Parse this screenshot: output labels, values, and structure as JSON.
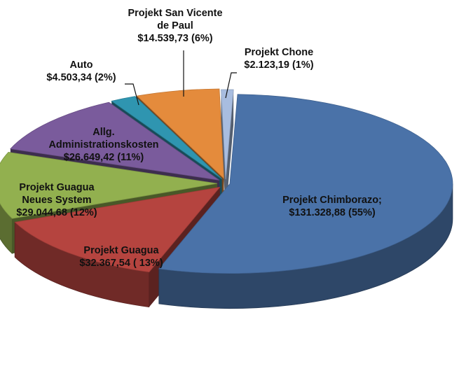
{
  "chart_data": {
    "type": "pie",
    "style": "3d-exploded",
    "slices": [
      {
        "name": "Projekt Chimborazo;",
        "value": 131328.88,
        "value_label": "$131.328,88 (55%)",
        "color": "#4a72a8",
        "label_lines": [
          "Projekt Chimborazo;",
          "$131.328,88 (55%)"
        ]
      },
      {
        "name": "Projekt Guagua",
        "value": 32367.54,
        "value_label": "$32.367,54 ( 13%)",
        "color": "#b5443f",
        "label_lines": [
          "Projekt Guagua",
          "$32.367,54 ( 13%)"
        ]
      },
      {
        "name": "Projekt Guagua Neues System",
        "value": 29044.68,
        "value_label": "$29.044,68 (12%)",
        "color": "#92b04f",
        "label_lines": [
          "Projekt Guagua",
          "Neues System",
          "$29.044,68 (12%)"
        ]
      },
      {
        "name": "Allg. Administrationskosten",
        "value": 26649.42,
        "value_label": "$26.649,42 (11%)",
        "color": "#7a5b9c",
        "label_lines": [
          "Allg.",
          "Administrationskosten",
          "$26.649,42 (11%)"
        ]
      },
      {
        "name": "Auto",
        "value": 4503.34,
        "value_label": "$4.503,34 (2%)",
        "color": "#2f95b0",
        "label_lines": [
          "Auto",
          "$4.503,34 (2%)"
        ]
      },
      {
        "name": "Projekt San Vicente de Paul",
        "value": 14539.73,
        "value_label": "$14.539,73 (6%)",
        "color": "#e48b3c",
        "label_lines": [
          "Projekt San Vicente",
          "de Paul",
          "$14.539,73 (6%)"
        ]
      },
      {
        "name": "Projekt Chone",
        "value": 2123.19,
        "value_label": "$2.123,19 (1%)",
        "color": "#a8bde0",
        "label_lines": [
          "Projekt Chone",
          "$2.123,19 (1%)"
        ]
      }
    ]
  }
}
